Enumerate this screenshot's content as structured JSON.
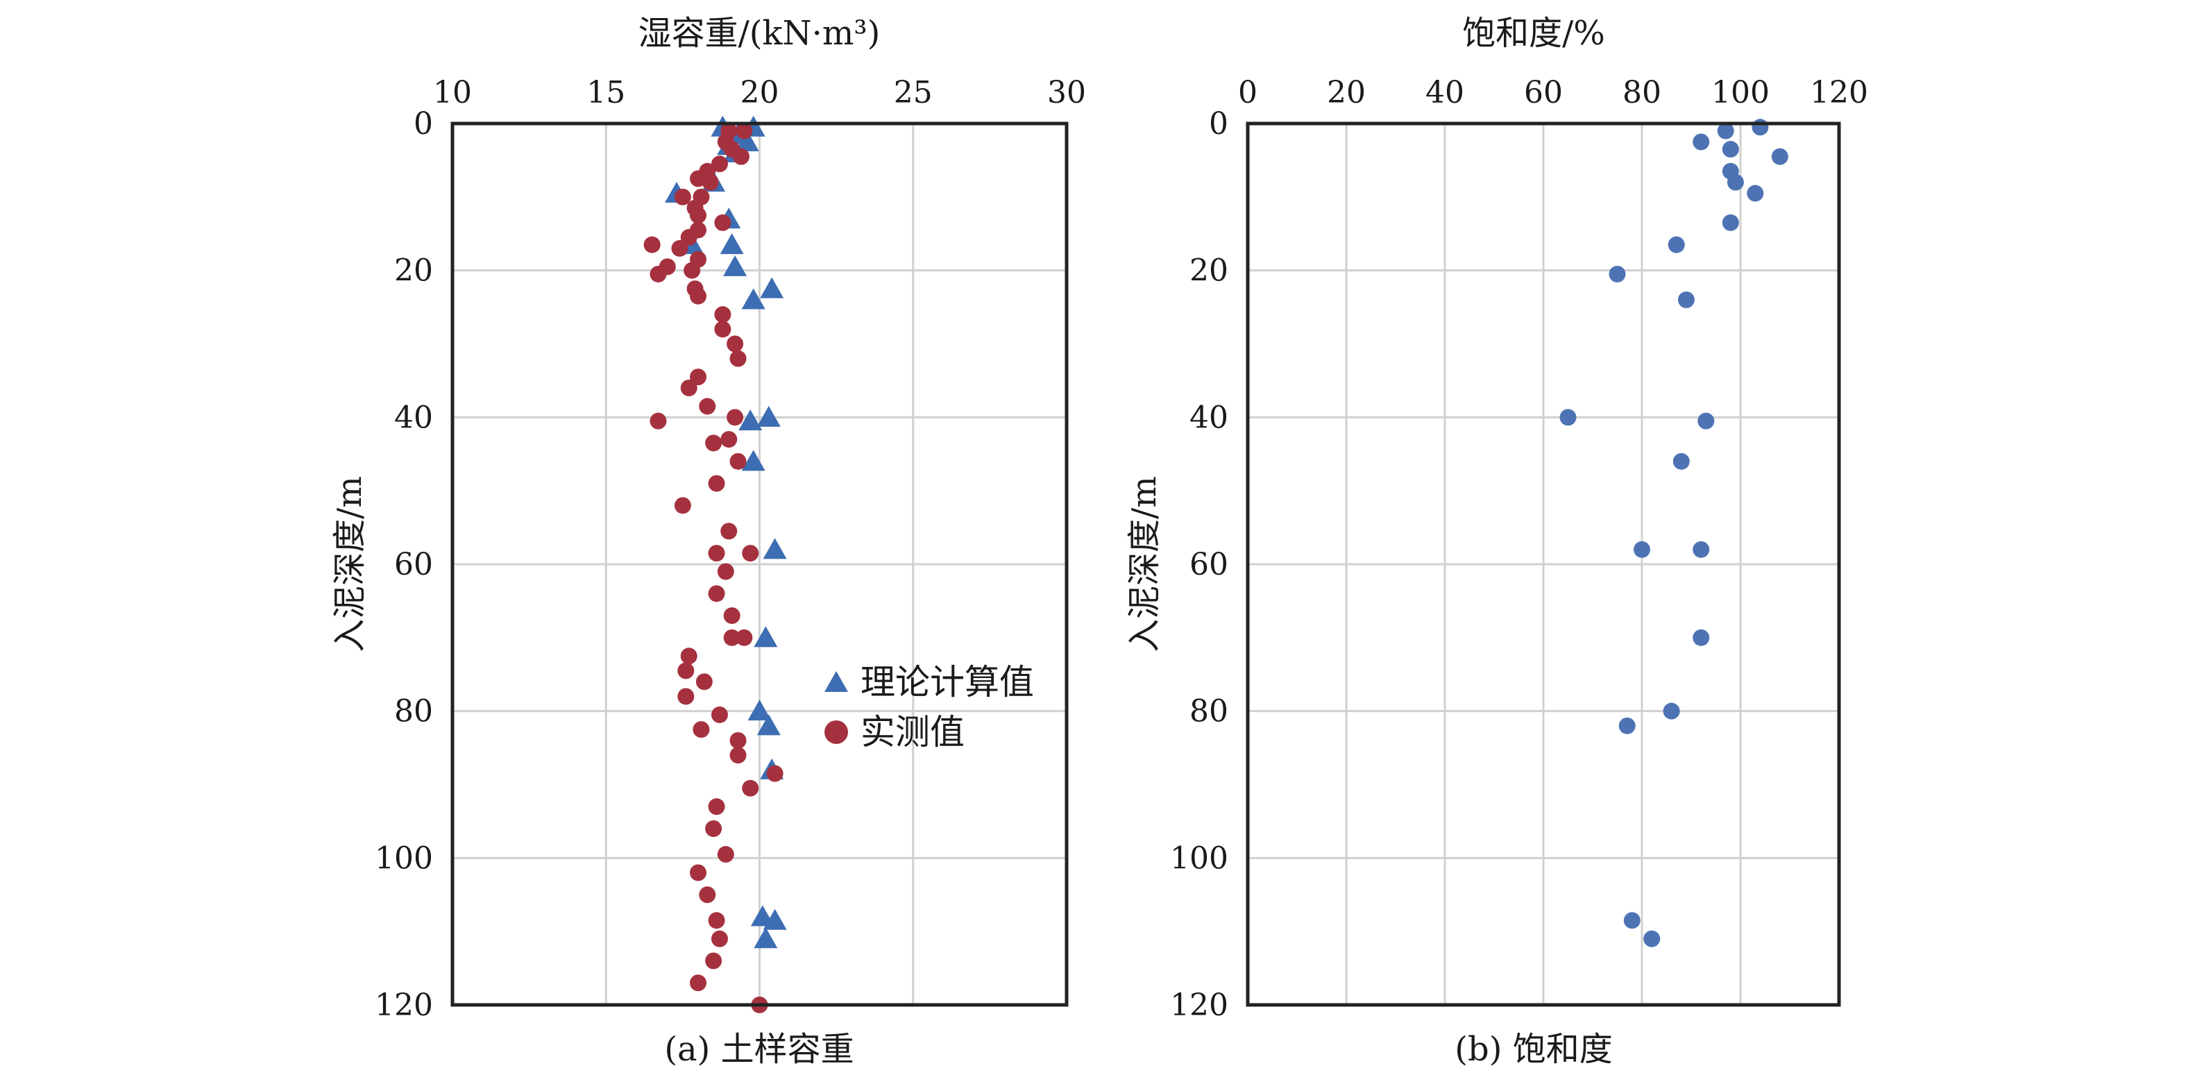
{
  "chart_data": [
    {
      "type": "scatter",
      "caption": "(a) 土样容重",
      "xlabel": "湿容重/(kN·m³)",
      "ylabel": "入泥深度/m",
      "xlim": [
        10,
        30
      ],
      "ylim": [
        0,
        120
      ],
      "y_inverted": true,
      "x_axis_position": "top",
      "x_ticks": [
        10,
        15,
        20,
        25,
        30
      ],
      "y_ticks": [
        0,
        20,
        40,
        60,
        80,
        100,
        120
      ],
      "grid": true,
      "legend": "right-middle",
      "series": [
        {
          "name": "理论计算值",
          "marker": "triangle",
          "color": "#3d6db2",
          "points": [
            [
              18.8,
              0.5
            ],
            [
              19.8,
              0.5
            ],
            [
              19.3,
              1.5
            ],
            [
              19.6,
              2.5
            ],
            [
              19.0,
              3.0
            ],
            [
              19.2,
              4.0
            ],
            [
              18.5,
              8.0
            ],
            [
              17.3,
              9.5
            ],
            [
              19.0,
              13.0
            ],
            [
              17.8,
              16.5
            ],
            [
              19.1,
              16.5
            ],
            [
              19.2,
              19.5
            ],
            [
              19.8,
              24.0
            ],
            [
              20.4,
              22.5
            ],
            [
              19.7,
              40.5
            ],
            [
              20.3,
              40.0
            ],
            [
              19.8,
              46.0
            ],
            [
              20.5,
              58.0
            ],
            [
              20.2,
              70.0
            ],
            [
              20.0,
              80.0
            ],
            [
              20.3,
              82.0
            ],
            [
              20.4,
              88.0
            ],
            [
              20.1,
              108.0
            ],
            [
              20.5,
              108.5
            ],
            [
              20.2,
              111.0
            ]
          ]
        },
        {
          "name": "实测值",
          "marker": "circle",
          "color": "#a5313f",
          "points": [
            [
              19.0,
              1.0
            ],
            [
              19.5,
              1.0
            ],
            [
              18.9,
              2.5
            ],
            [
              19.1,
              3.5
            ],
            [
              19.4,
              4.5
            ],
            [
              18.7,
              5.5
            ],
            [
              18.3,
              6.5
            ],
            [
              18.0,
              7.5
            ],
            [
              18.4,
              8.0
            ],
            [
              17.5,
              10.0
            ],
            [
              18.1,
              10.0
            ],
            [
              17.9,
              11.5
            ],
            [
              18.0,
              12.5
            ],
            [
              18.8,
              13.5
            ],
            [
              18.0,
              14.5
            ],
            [
              17.7,
              15.5
            ],
            [
              16.5,
              16.5
            ],
            [
              17.4,
              17.0
            ],
            [
              18.0,
              18.5
            ],
            [
              17.0,
              19.5
            ],
            [
              16.7,
              20.5
            ],
            [
              17.8,
              20.0
            ],
            [
              17.9,
              22.5
            ],
            [
              18.0,
              23.5
            ],
            [
              18.8,
              26.0
            ],
            [
              18.8,
              28.0
            ],
            [
              19.2,
              30.0
            ],
            [
              19.3,
              32.0
            ],
            [
              18.0,
              34.5
            ],
            [
              17.7,
              36.0
            ],
            [
              18.3,
              38.5
            ],
            [
              16.7,
              40.5
            ],
            [
              19.2,
              40.0
            ],
            [
              19.0,
              43.0
            ],
            [
              18.5,
              43.5
            ],
            [
              19.3,
              46.0
            ],
            [
              18.6,
              49.0
            ],
            [
              17.5,
              52.0
            ],
            [
              19.0,
              55.5
            ],
            [
              18.6,
              58.5
            ],
            [
              19.7,
              58.5
            ],
            [
              18.9,
              61.0
            ],
            [
              18.6,
              64.0
            ],
            [
              19.1,
              67.0
            ],
            [
              19.1,
              70.0
            ],
            [
              19.5,
              70.0
            ],
            [
              17.7,
              72.5
            ],
            [
              17.6,
              74.5
            ],
            [
              18.2,
              76.0
            ],
            [
              17.6,
              78.0
            ],
            [
              18.7,
              80.5
            ],
            [
              18.1,
              82.5
            ],
            [
              19.3,
              84.0
            ],
            [
              19.3,
              86.0
            ],
            [
              20.5,
              88.5
            ],
            [
              19.7,
              90.5
            ],
            [
              18.6,
              93.0
            ],
            [
              18.5,
              96.0
            ],
            [
              18.9,
              99.5
            ],
            [
              18.0,
              102.0
            ],
            [
              18.3,
              105.0
            ],
            [
              18.6,
              108.5
            ],
            [
              18.7,
              111.0
            ],
            [
              18.5,
              114.0
            ],
            [
              18.0,
              117.0
            ],
            [
              20.0,
              120.0
            ]
          ]
        }
      ]
    },
    {
      "type": "scatter",
      "caption": "(b) 饱和度",
      "xlabel": "饱和度/%",
      "ylabel": "入泥深度/m",
      "xlim": [
        0,
        120
      ],
      "ylim": [
        0,
        120
      ],
      "y_inverted": true,
      "x_axis_position": "top",
      "x_ticks": [
        0,
        20,
        40,
        60,
        80,
        100,
        120
      ],
      "y_ticks": [
        0,
        20,
        40,
        60,
        80,
        100,
        120
      ],
      "grid": true,
      "series": [
        {
          "marker": "circle",
          "color": "#4e73b4",
          "points": [
            [
              104,
              0.5
            ],
            [
              97,
              1.0
            ],
            [
              92,
              2.5
            ],
            [
              98,
              3.5
            ],
            [
              108,
              4.5
            ],
            [
              98,
              6.5
            ],
            [
              99,
              8.0
            ],
            [
              103,
              9.5
            ],
            [
              98,
              13.5
            ],
            [
              87,
              16.5
            ],
            [
              75,
              20.5
            ],
            [
              89,
              24.0
            ],
            [
              65,
              40.0
            ],
            [
              93,
              40.5
            ],
            [
              88,
              46.0
            ],
            [
              80,
              58.0
            ],
            [
              92,
              58.0
            ],
            [
              92,
              70.0
            ],
            [
              86,
              80.0
            ],
            [
              77,
              82.0
            ],
            [
              78,
              108.5
            ],
            [
              82,
              111.0
            ]
          ]
        }
      ]
    }
  ]
}
